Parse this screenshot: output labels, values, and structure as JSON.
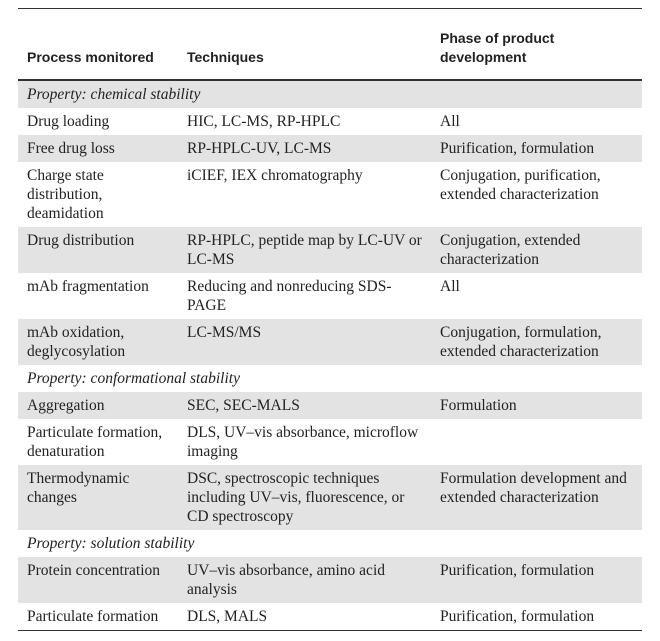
{
  "table": {
    "header": [
      "Process monitored",
      "Techniques",
      "Phase of product development"
    ],
    "sections": [
      {
        "title": "Property: chemical stability",
        "rows": [
          [
            "Drug loading",
            "HIC, LC-MS, RP-HPLC",
            "All"
          ],
          [
            "Free drug loss",
            "RP-HPLC-UV, LC-MS",
            "Purification, formulation"
          ],
          [
            "Charge state distribution, deamidation",
            "iCIEF, IEX chromatography",
            "Conjugation, purification, extended characterization"
          ],
          [
            "Drug distribution",
            "RP-HPLC, peptide map by LC-UV or LC-MS",
            "Conjugation, extended characterization"
          ],
          [
            "mAb fragmentation",
            "Reducing and nonreducing SDS-PAGE",
            "All"
          ],
          [
            "mAb oxidation, deglycosylation",
            "LC-MS/MS",
            "Conjugation, formulation, extended characterization"
          ]
        ]
      },
      {
        "title": "Property: conformational stability",
        "rows": [
          [
            "Aggregation",
            "SEC, SEC-MALS",
            "Formulation"
          ],
          [
            "Particulate formation, denaturation",
            "DLS, UV–vis absorbance, microflow imaging",
            null
          ],
          [
            "Thermodynamic changes",
            "DSC, spectroscopic techniques including UV–vis, fluorescence, or CD spectroscopy",
            "Formulation development and extended characterization"
          ]
        ]
      },
      {
        "title": "Property: solution stability",
        "rows": [
          [
            "Protein concentration",
            "UV–vis absorbance, amino acid analysis",
            "Purification, formulation"
          ],
          [
            "Particulate formation",
            "DLS, MALS",
            "Purification, formulation"
          ]
        ]
      }
    ]
  }
}
